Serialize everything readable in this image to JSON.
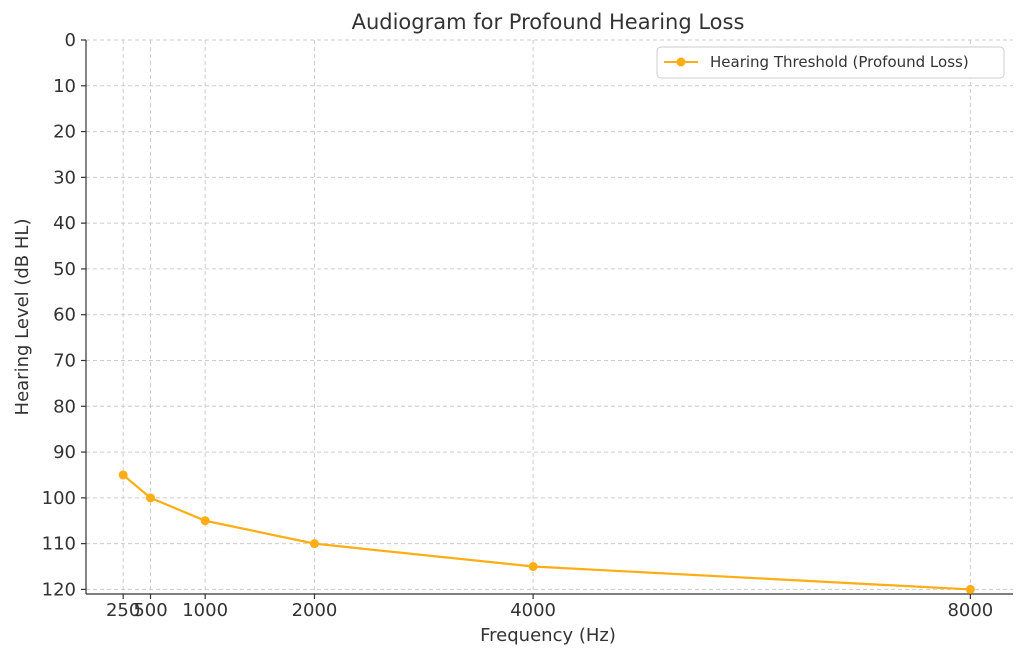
{
  "chart_data": {
    "type": "line",
    "title": "Audiogram for Profound Hearing Loss",
    "xlabel": "Frequency (Hz)",
    "ylabel": "Hearing Level (dB HL)",
    "x": [
      250,
      500,
      1000,
      2000,
      4000,
      8000
    ],
    "xticks": [
      250,
      500,
      1000,
      2000,
      4000,
      8000
    ],
    "xtick_labels": [
      "250",
      "500",
      "1000",
      "2000",
      "4000",
      "8000"
    ],
    "xlim": [
      -90,
      8390
    ],
    "yticks": [
      0,
      10,
      20,
      30,
      40,
      50,
      60,
      70,
      80,
      90,
      100,
      110,
      120
    ],
    "ytick_labels": [
      "0",
      "10",
      "20",
      "30",
      "40",
      "50",
      "60",
      "70",
      "80",
      "90",
      "100",
      "110",
      "120"
    ],
    "ylim": [
      121,
      0
    ],
    "y_inverted": true,
    "grid": true,
    "legend_position": "top-right",
    "series": [
      {
        "name": "Hearing Threshold (Profound Loss)",
        "values": [
          95,
          100,
          105,
          110,
          115,
          120
        ],
        "color": "#ffad14",
        "marker": "circle"
      }
    ]
  }
}
